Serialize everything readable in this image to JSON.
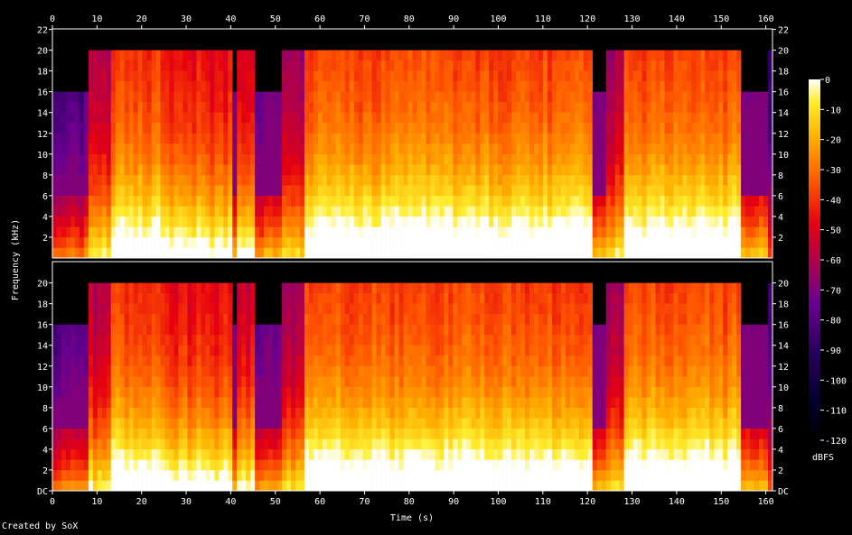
{
  "chart_data": {
    "type": "heatmap",
    "title": "",
    "xlabel": "Time (s)",
    "ylabel": "Frequency (kHz)",
    "xlim": [
      0,
      161.5
    ],
    "ylim": [
      0,
      22.05
    ],
    "x_ticks": [
      0,
      10,
      20,
      30,
      40,
      50,
      60,
      70,
      80,
      90,
      100,
      110,
      120,
      130,
      140,
      150,
      160
    ],
    "y_ticks_upper": [
      {
        "v": 2,
        "label": "2"
      },
      {
        "v": 4,
        "label": "4"
      },
      {
        "v": 6,
        "label": "6"
      },
      {
        "v": 8,
        "label": "8"
      },
      {
        "v": 10,
        "label": "10"
      },
      {
        "v": 12,
        "label": "12"
      },
      {
        "v": 14,
        "label": "14"
      },
      {
        "v": 16,
        "label": "16"
      },
      {
        "v": 18,
        "label": "18"
      },
      {
        "v": 20,
        "label": "20"
      },
      {
        "v": 22,
        "label": "22"
      }
    ],
    "y_ticks_lower": [
      {
        "v": 0,
        "label": "DC"
      },
      {
        "v": 2,
        "label": "2"
      },
      {
        "v": 4,
        "label": "4"
      },
      {
        "v": 6,
        "label": "6"
      },
      {
        "v": 8,
        "label": "8"
      },
      {
        "v": 10,
        "label": "10"
      },
      {
        "v": 12,
        "label": "12"
      },
      {
        "v": 14,
        "label": "14"
      },
      {
        "v": 16,
        "label": "16"
      },
      {
        "v": 18,
        "label": "18"
      },
      {
        "v": 20,
        "label": "20"
      }
    ],
    "channels": 2,
    "colorbar": {
      "label": "dBFS",
      "range": [
        -120,
        0
      ],
      "ticks": [
        0,
        -10,
        -20,
        -30,
        -40,
        -50,
        -60,
        -70,
        -80,
        -90,
        -100,
        -110,
        -120
      ]
    },
    "segments": [
      {
        "t": [
          0,
          8
        ],
        "cutoff_khz": 16,
        "level": 0.45
      },
      {
        "t": [
          8,
          13
        ],
        "cutoff_khz": 20,
        "level": 0.62
      },
      {
        "t": [
          13,
          25.5
        ],
        "cutoff_khz": 20,
        "level": 0.78
      },
      {
        "t": [
          25.5,
          40
        ],
        "cutoff_khz": 20,
        "level": 0.72
      },
      {
        "t": [
          40,
          41.5
        ],
        "cutoff_khz": 16,
        "level": 0.5
      },
      {
        "t": [
          41.5,
          45.5
        ],
        "cutoff_khz": 20,
        "level": 0.66
      },
      {
        "t": [
          45.5,
          51
        ],
        "cutoff_khz": 16,
        "level": 0.5
      },
      {
        "t": [
          51,
          57
        ],
        "cutoff_khz": 20,
        "level": 0.58
      },
      {
        "t": [
          57,
          121
        ],
        "cutoff_khz": 20,
        "level": 0.8
      },
      {
        "t": [
          121,
          124.5
        ],
        "cutoff_khz": 16,
        "level": 0.52
      },
      {
        "t": [
          124.5,
          128
        ],
        "cutoff_khz": 20,
        "level": 0.6
      },
      {
        "t": [
          128,
          154
        ],
        "cutoff_khz": 20,
        "level": 0.8
      },
      {
        "t": [
          154,
          160.5
        ],
        "cutoff_khz": 16,
        "level": 0.55
      },
      {
        "t": [
          160.5,
          161.5
        ],
        "cutoff_khz": 20,
        "level": 0.4
      }
    ]
  },
  "footer": {
    "credit": "Created by SoX"
  }
}
